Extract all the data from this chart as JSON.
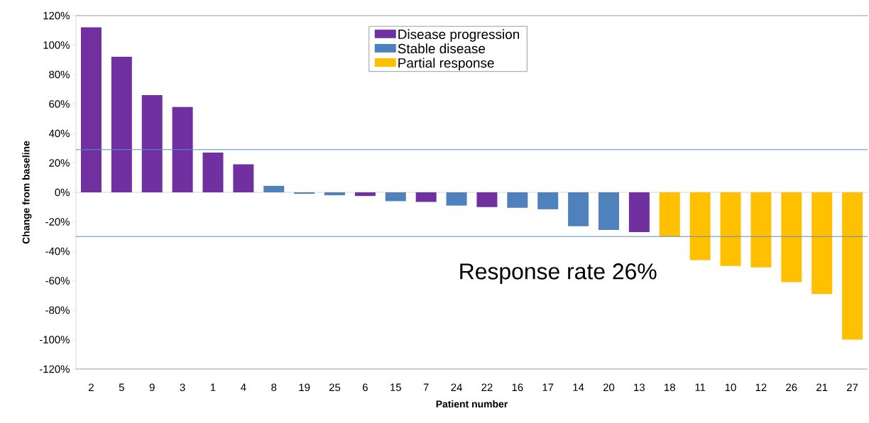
{
  "chart_data": {
    "type": "bar",
    "xlabel": "Patient number",
    "ylabel": "Change from baseline",
    "categories": [
      "2",
      "5",
      "9",
      "3",
      "1",
      "4",
      "8",
      "19",
      "25",
      "6",
      "15",
      "7",
      "24",
      "22",
      "16",
      "17",
      "14",
      "20",
      "13",
      "18",
      "11",
      "10",
      "12",
      "26",
      "21",
      "27"
    ],
    "series": [
      {
        "name": "Disease progression",
        "color": "#7030a0",
        "values": [
          112,
          92,
          66,
          58,
          27,
          19,
          null,
          null,
          null,
          -2.5,
          null,
          -6.5,
          null,
          -10,
          null,
          null,
          null,
          null,
          -27,
          null,
          null,
          null,
          null,
          null,
          null,
          null
        ]
      },
      {
        "name": "Stable disease",
        "color": "#4f81bd",
        "values": [
          null,
          null,
          null,
          null,
          null,
          null,
          4.4,
          -1,
          -2,
          null,
          -6,
          null,
          -9,
          null,
          -10.5,
          -11.5,
          -23,
          -25.5,
          null,
          null,
          null,
          null,
          null,
          null,
          null,
          null
        ]
      },
      {
        "name": "Partial response",
        "color": "#ffc000",
        "values": [
          null,
          null,
          null,
          null,
          null,
          null,
          null,
          null,
          null,
          null,
          null,
          null,
          null,
          null,
          null,
          null,
          null,
          null,
          null,
          -30,
          -46,
          -50,
          -51,
          -61,
          -69,
          -100
        ]
      }
    ],
    "ylim": [
      -120,
      120
    ],
    "yticks": [
      {
        "value": -120,
        "label": "-120%"
      },
      {
        "value": -100,
        "label": "-100%"
      },
      {
        "value": -80,
        "label": "-80%"
      },
      {
        "value": -60,
        "label": "-60%"
      },
      {
        "value": -40,
        "label": "-40%"
      },
      {
        "value": -20,
        "label": "-20%"
      },
      {
        "value": 0,
        "label": "0%"
      },
      {
        "value": 20,
        "label": "20%"
      },
      {
        "value": 40,
        "label": "40%"
      },
      {
        "value": 60,
        "label": "60%"
      },
      {
        "value": 80,
        "label": "80%"
      },
      {
        "value": 100,
        "label": "100%"
      },
      {
        "value": 120,
        "label": "120%"
      }
    ],
    "ref_lines": [
      {
        "axis": "y",
        "value": 29,
        "color": "#5b8fc9"
      },
      {
        "axis": "y",
        "value": -30,
        "color": "#5b8fc9"
      }
    ],
    "annotations": [
      "Response rate 26%"
    ],
    "legend": "top"
  }
}
